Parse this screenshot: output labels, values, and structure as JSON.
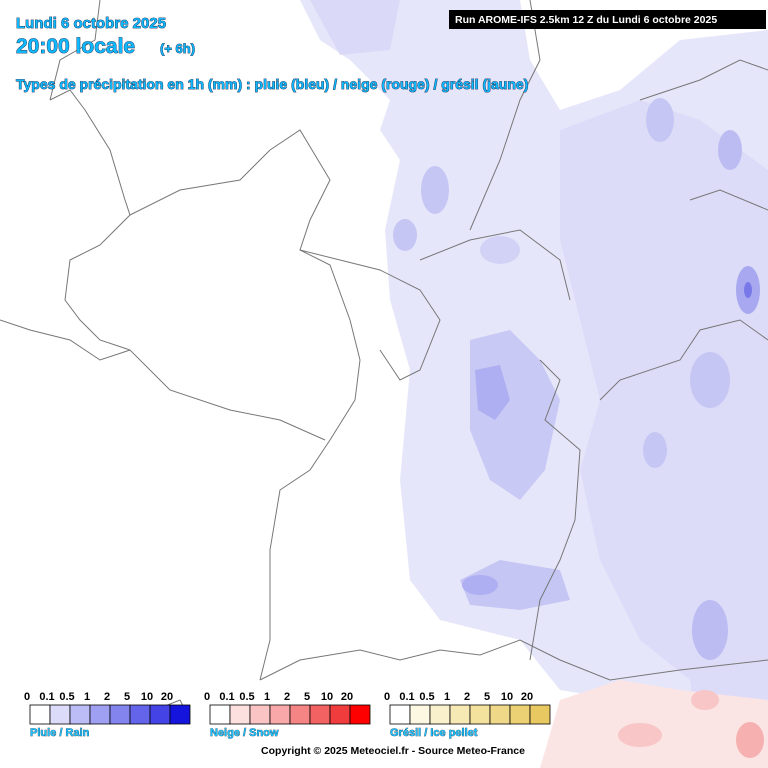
{
  "header": {
    "date": "Lundi 6 octobre 2025",
    "time": "20:00 locale",
    "lead": "(+ 6h)",
    "subtitle": "Types de précipitation en 1h (mm) : pluie (bleu) / neige (rouge) / grésil (jaune)",
    "run": "Run AROME-IFS 2.5km 12 Z du Lundi 6 octobre 2025"
  },
  "legends": [
    {
      "name": "Pluie / Rain",
      "labels": [
        "0",
        "0.1",
        "0.5",
        "1",
        "2",
        "5",
        "10",
        "20"
      ]
    },
    {
      "name": "Neige / Snow",
      "labels": [
        "0",
        "0.1",
        "0.5",
        "1",
        "2",
        "5",
        "10",
        "20"
      ]
    },
    {
      "name": "Grésil / Ice pellet",
      "labels": [
        "0",
        "0.1",
        "0.5",
        "1",
        "2",
        "5",
        "10",
        "20"
      ]
    }
  ],
  "copyright": "Copyright © 2025 Meteociel.fr - Source Meteo-France"
}
